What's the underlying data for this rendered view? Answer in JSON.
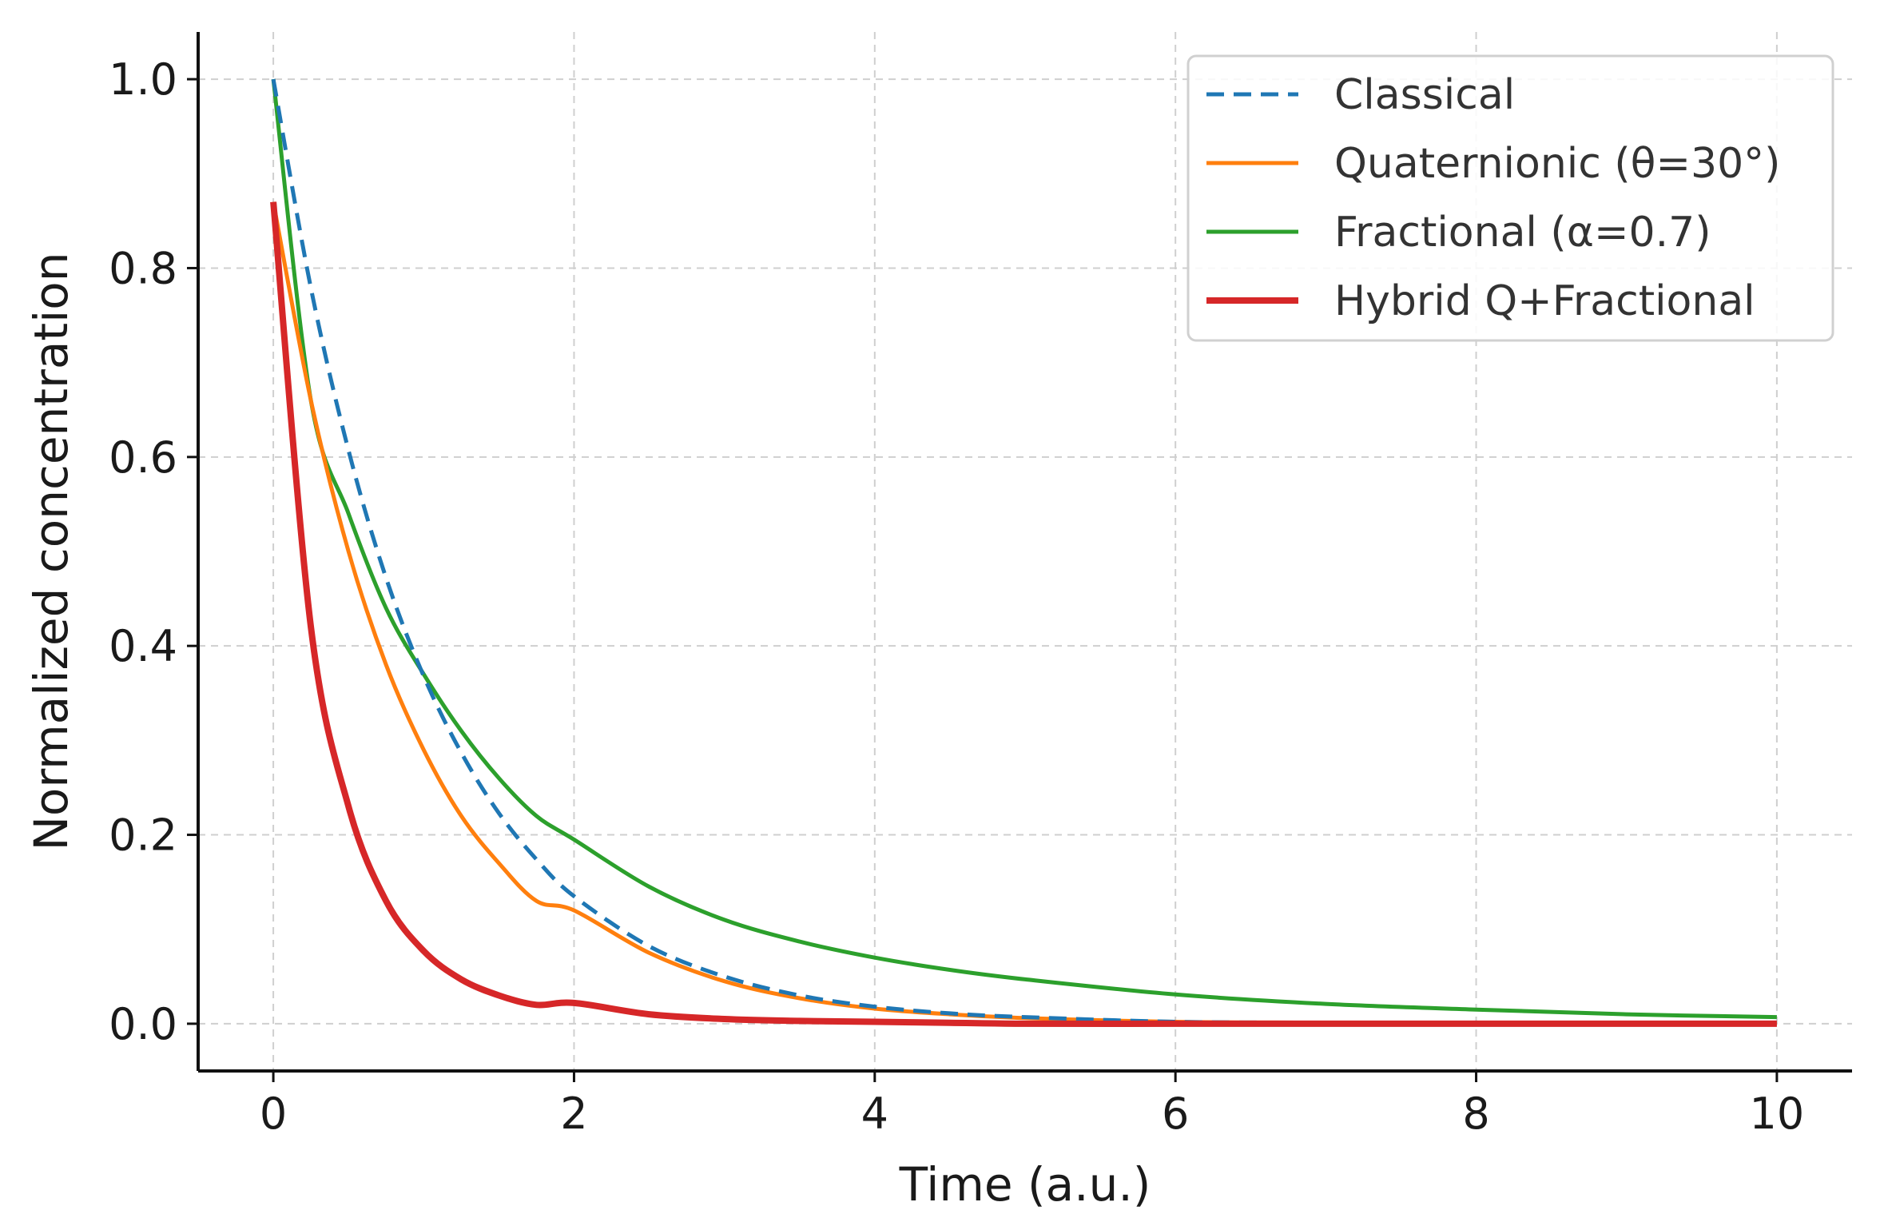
{
  "chart_data": {
    "type": "line",
    "title": "",
    "xlabel": "Time (a.u.)",
    "ylabel": "Normalized concentration",
    "xlim": [
      -0.5,
      10.5
    ],
    "ylim": [
      -0.05,
      1.05
    ],
    "xticks": [
      0,
      2,
      4,
      6,
      8,
      10
    ],
    "xtick_labels": [
      "0",
      "2",
      "4",
      "6",
      "8",
      "10"
    ],
    "yticks": [
      0.0,
      0.2,
      0.4,
      0.6,
      0.8,
      1.0
    ],
    "ytick_labels": [
      "0.0",
      "0.2",
      "0.4",
      "0.6",
      "0.8",
      "1.0"
    ],
    "grid": true,
    "legend_position": "top-right",
    "x": [
      0,
      0.25,
      0.5,
      0.75,
      1,
      1.25,
      1.5,
      1.75,
      2,
      2.5,
      3,
      3.5,
      4,
      4.5,
      5,
      6,
      7,
      8,
      9,
      10
    ],
    "series": [
      {
        "name": "Classical",
        "color": "#1f77b4",
        "style": "dashed",
        "values": [
          1.0,
          0.779,
          0.607,
          0.472,
          0.368,
          0.287,
          0.223,
          0.174,
          0.135,
          0.082,
          0.05,
          0.03,
          0.018,
          0.011,
          0.007,
          0.002,
          0.001,
          0.0,
          0.0,
          0.0
        ]
      },
      {
        "name": "Quaternionic (θ=30°)",
        "color": "#ff7f0e",
        "style": "solid",
        "values": [
          0.87,
          0.66,
          0.5,
          0.38,
          0.29,
          0.22,
          0.17,
          0.13,
          0.12,
          0.075,
          0.045,
          0.027,
          0.016,
          0.01,
          0.006,
          0.002,
          0.001,
          0.0,
          0.0,
          0.0
        ]
      },
      {
        "name": "Fractional (α=0.7)",
        "color": "#2ca02c",
        "style": "solid",
        "values": [
          1.0,
          0.66,
          0.54,
          0.44,
          0.37,
          0.31,
          0.26,
          0.22,
          0.195,
          0.145,
          0.11,
          0.087,
          0.07,
          0.057,
          0.047,
          0.031,
          0.021,
          0.015,
          0.01,
          0.007
        ]
      },
      {
        "name": "Hybrid Q+Fractional",
        "color": "#d62728",
        "style": "solid",
        "values": [
          0.87,
          0.42,
          0.23,
          0.13,
          0.077,
          0.047,
          0.03,
          0.02,
          0.022,
          0.01,
          0.005,
          0.003,
          0.002,
          0.001,
          0.0,
          0.0,
          0.0,
          0.0,
          0.0,
          0.0
        ]
      }
    ]
  }
}
